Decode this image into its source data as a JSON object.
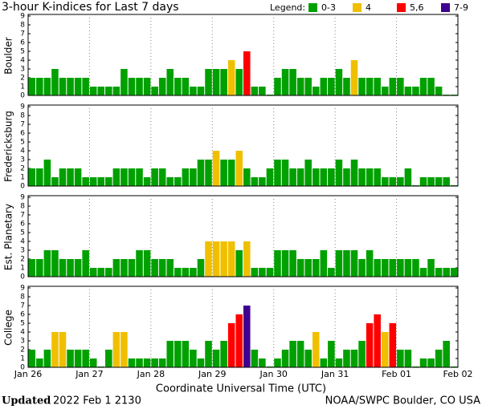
{
  "title": "3-hour K-indices for Last 7 days",
  "legend": {
    "title": "Legend:",
    "items": [
      {
        "label": "0-3",
        "color": "#00a000"
      },
      {
        "label": "4",
        "color": "#f0c000"
      },
      {
        "label": "5,6",
        "color": "#ff0000"
      },
      {
        "label": "7-9",
        "color": "#400090"
      }
    ]
  },
  "x_labels": [
    "Jan 26",
    "Jan 27",
    "Jan 28",
    "Jan 29",
    "Jan 30",
    "Jan 31",
    "Feb 01",
    "Feb 02"
  ],
  "xlabel": "Coordinate Universal Time (UTC)",
  "footer": {
    "updated": "Updated",
    "date": "2022 Feb  1 2130",
    "source": "NOAA/SWPC Boulder, CO USA"
  },
  "chart_data": [
    {
      "type": "bar",
      "title": "Boulder",
      "ylim": [
        0,
        9
      ],
      "yticks": [
        0,
        1,
        2,
        3,
        4,
        5,
        6,
        7,
        8,
        9
      ],
      "values": [
        2,
        2,
        2,
        3,
        2,
        2,
        2,
        2,
        1,
        1,
        1,
        1,
        3,
        2,
        2,
        2,
        1,
        2,
        3,
        2,
        2,
        1,
        1,
        3,
        3,
        3,
        4,
        3,
        5,
        1,
        1,
        0,
        2,
        3,
        3,
        2,
        2,
        1,
        2,
        2,
        3,
        2,
        4,
        2,
        2,
        2,
        1,
        2,
        2,
        1,
        1,
        2,
        2,
        1,
        0,
        0
      ]
    },
    {
      "type": "bar",
      "title": "Fredericksburg",
      "ylim": [
        0,
        9
      ],
      "yticks": [
        0,
        1,
        2,
        3,
        4,
        5,
        6,
        7,
        8,
        9
      ],
      "values": [
        2,
        2,
        3,
        1,
        2,
        2,
        2,
        1,
        1,
        1,
        1,
        2,
        2,
        2,
        2,
        1,
        2,
        2,
        1,
        1,
        2,
        2,
        3,
        3,
        4,
        3,
        3,
        4,
        2,
        1,
        1,
        2,
        3,
        3,
        2,
        2,
        3,
        2,
        2,
        2,
        3,
        2,
        3,
        2,
        2,
        2,
        1,
        1,
        1,
        2,
        0,
        1,
        1,
        1,
        1,
        0
      ]
    },
    {
      "type": "bar",
      "title": "Est. Planetary",
      "ylim": [
        0,
        9
      ],
      "yticks": [
        0,
        1,
        2,
        3,
        4,
        5,
        6,
        7,
        8,
        9
      ],
      "values": [
        2,
        2,
        3,
        3,
        2,
        2,
        2,
        3,
        1,
        1,
        1,
        2,
        2,
        2,
        3,
        3,
        2,
        2,
        2,
        1,
        1,
        1,
        2,
        4,
        4,
        4,
        4,
        3,
        4,
        1,
        1,
        1,
        3,
        3,
        3,
        2,
        2,
        2,
        3,
        1,
        3,
        3,
        3,
        2,
        3,
        2,
        2,
        2,
        2,
        2,
        2,
        1,
        2,
        1,
        1,
        1
      ]
    },
    {
      "type": "bar",
      "title": "College",
      "ylim": [
        0,
        9
      ],
      "yticks": [
        0,
        1,
        2,
        3,
        4,
        5,
        6,
        7,
        8,
        9
      ],
      "values": [
        2,
        1,
        2,
        4,
        4,
        2,
        2,
        2,
        1,
        0,
        2,
        4,
        4,
        1,
        1,
        1,
        1,
        1,
        3,
        3,
        3,
        2,
        1,
        3,
        2,
        3,
        5,
        6,
        7,
        2,
        1,
        0,
        1,
        2,
        3,
        3,
        2,
        4,
        1,
        3,
        1,
        2,
        2,
        3,
        5,
        6,
        4,
        5,
        2,
        2,
        0,
        1,
        1,
        2,
        3,
        0
      ]
    }
  ]
}
